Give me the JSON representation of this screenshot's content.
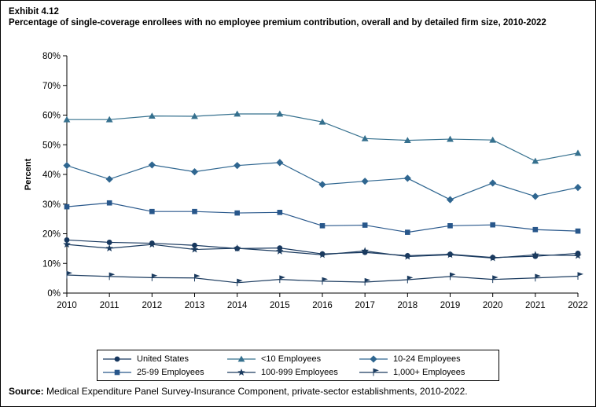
{
  "page": {
    "exhibit_label": "Exhibit 4.12",
    "title": "Percentage of single-coverage enrollees with no employee premium contribution, overall and by detailed firm size, 2010-2022",
    "source_label": "Source:",
    "source_text": " Medical Expenditure Panel Survey-Insurance Component, private-sector establishments, 2010-2022."
  },
  "chart_data": {
    "type": "line",
    "title": "Percentage of single-coverage enrollees with no employee premium contribution, overall and by detailed firm size, 2010-2022",
    "xlabel": "",
    "ylabel": "Percent",
    "x": [
      2010,
      2011,
      2012,
      2013,
      2014,
      2015,
      2016,
      2017,
      2018,
      2019,
      2020,
      2021,
      2022
    ],
    "ylim": [
      0,
      80
    ],
    "ytick_step": 10,
    "ytick_labels": [
      "0%",
      "10%",
      "20%",
      "30%",
      "40%",
      "50%",
      "60%",
      "70%",
      "80%"
    ],
    "grid": false,
    "legend_position": "bottom",
    "axis_color": "#000000",
    "series": [
      {
        "name": "United States",
        "marker": "circle",
        "color": "#17375E",
        "values": [
          17.9,
          17.1,
          16.8,
          16.1,
          15.0,
          15.2,
          13.2,
          13.7,
          12.6,
          13.1,
          12.0,
          12.4,
          13.4
        ]
      },
      {
        "name": "<10 Employees",
        "marker": "triangle",
        "color": "#35708E",
        "values": [
          58.5,
          58.5,
          59.7,
          59.6,
          60.4,
          60.4,
          57.7,
          52.1,
          51.5,
          51.9,
          51.6,
          44.5,
          47.2
        ]
      },
      {
        "name": "10-24 Employees",
        "marker": "diamond",
        "color": "#2F6690",
        "values": [
          43.0,
          38.4,
          43.2,
          40.9,
          43.0,
          44.0,
          36.6,
          37.7,
          38.7,
          31.5,
          37.1,
          32.6,
          35.6
        ]
      },
      {
        "name": "25-99 Employees",
        "marker": "square",
        "color": "#28578B",
        "values": [
          29.1,
          30.4,
          27.5,
          27.5,
          27.0,
          27.2,
          22.7,
          22.9,
          20.5,
          22.7,
          23.0,
          21.4,
          20.9
        ]
      },
      {
        "name": "100-999 Employees",
        "marker": "star",
        "color": "#1B3B5F",
        "values": [
          16.4,
          15.1,
          16.4,
          14.7,
          15.1,
          14.1,
          12.9,
          14.2,
          12.3,
          12.9,
          11.8,
          12.9,
          12.6
        ]
      },
      {
        "name": "1,000+ Employees",
        "marker": "flag",
        "color": "#1B3B5F",
        "values": [
          6.1,
          5.6,
          5.2,
          5.1,
          3.5,
          4.6,
          4.0,
          3.7,
          4.5,
          5.6,
          4.6,
          5.1,
          5.7
        ]
      }
    ]
  }
}
